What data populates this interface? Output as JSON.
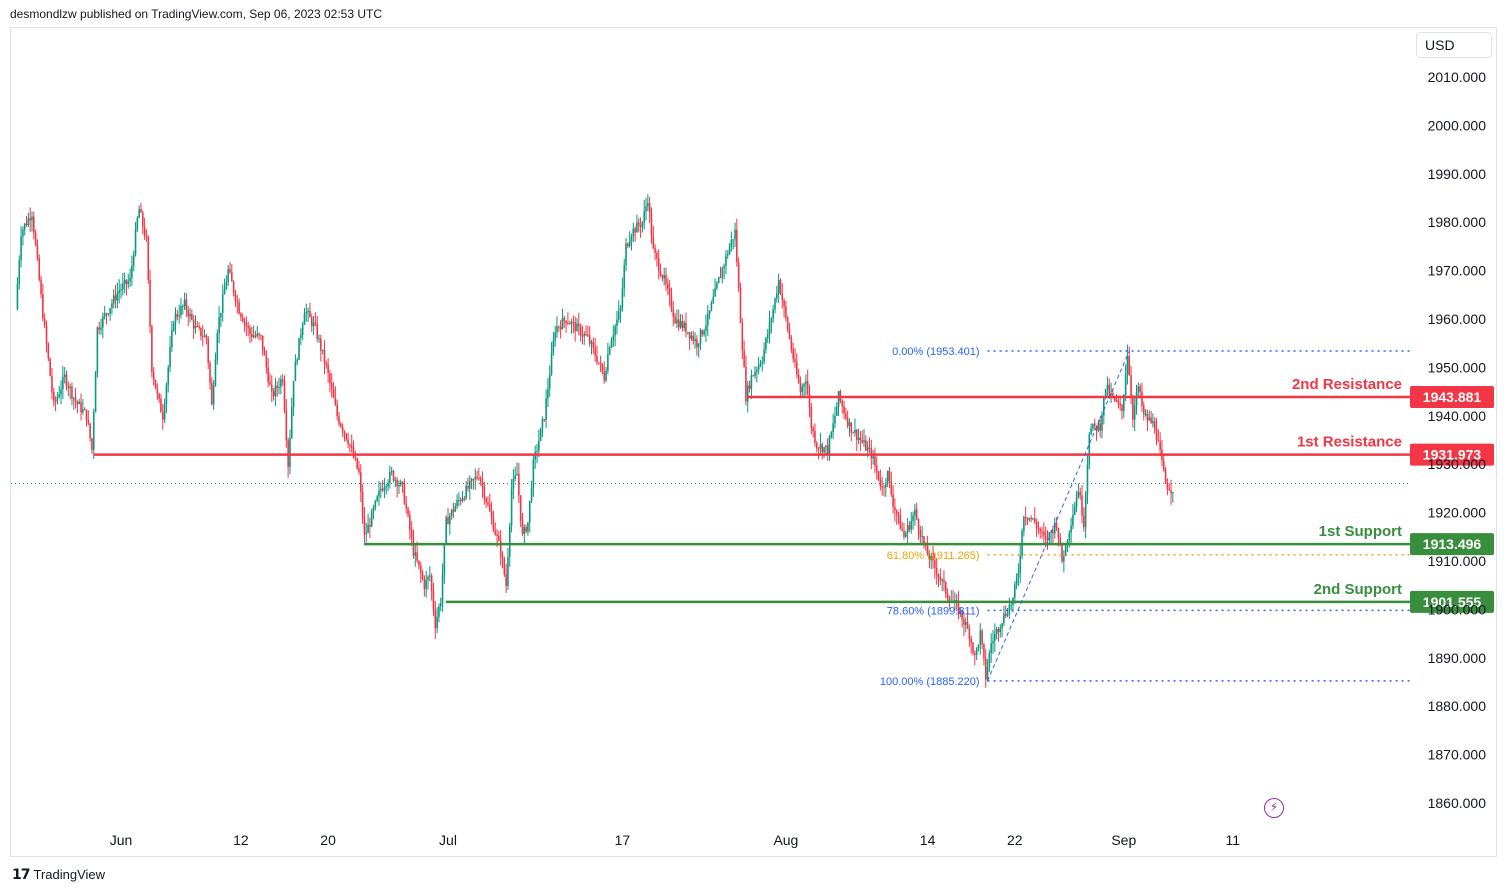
{
  "header": {
    "published": "desmondlzw published on TradingView.com, Sep 06, 2023 02:53 UTC"
  },
  "footer": {
    "brand": "TradingView",
    "logo_icon": "tradingview-logo-icon"
  },
  "currency": "USD",
  "colors": {
    "up": "#089981",
    "down": "#f23645",
    "resistance": "#f23645",
    "support": "#388e3c",
    "fib": "#2962ff",
    "fib_mid": "#f0a30a",
    "text": "#131722",
    "grid": "#e0e3eb"
  },
  "chart_data": {
    "type": "candlestick",
    "title": "",
    "ylim": [
      1852,
      2017
    ],
    "y_ticks": [
      "2010.000",
      "2000.000",
      "1990.000",
      "1980.000",
      "1970.000",
      "1960.000",
      "1950.000",
      "1940.000",
      "1930.000",
      "1920.000",
      "1910.000",
      "1900.000",
      "1890.000",
      "1880.000",
      "1870.000",
      "1860.000"
    ],
    "x_ticks": [
      {
        "label": "Jun",
        "day": 0
      },
      {
        "label": "12",
        "day": 11
      },
      {
        "label": "20",
        "day": 19
      },
      {
        "label": "Jul",
        "day": 30
      },
      {
        "label": "17",
        "day": 46
      },
      {
        "label": "Aug",
        "day": 61
      },
      {
        "label": "14",
        "day": 74
      },
      {
        "label": "22",
        "day": 82
      },
      {
        "label": "Sep",
        "day": 92
      },
      {
        "label": "11",
        "day": 102
      }
    ],
    "last_price": 1926.0,
    "levels": [
      {
        "name": "2nd Resistance",
        "value": 1943.881,
        "label": "1943.881",
        "kind": "resistance",
        "from_day": 57.5
      },
      {
        "name": "1st Resistance",
        "value": 1931.973,
        "label": "1931.973",
        "kind": "resistance",
        "from_day": -2.5
      },
      {
        "name": "1st Support",
        "value": 1913.496,
        "label": "1913.496",
        "kind": "support",
        "from_day": 22.3
      },
      {
        "name": "2nd Support",
        "value": 1901.555,
        "label": "1901.555",
        "kind": "support",
        "from_day": 29.8
      }
    ],
    "fibonacci": [
      {
        "label": "0.00% (1953.401)",
        "value": 1953.401
      },
      {
        "label": "61.80% (1911.265)",
        "value": 1911.265
      },
      {
        "label": "78.60% (1899.811)",
        "value": 1899.811
      },
      {
        "label": "100.00% (1885.220)",
        "value": 1885.22
      }
    ],
    "fib_anchor": {
      "start_day": 79.5,
      "start_value": 1885.22,
      "end_day": 92.5,
      "end_value": 1953.401
    },
    "path": [
      {
        "day": -9.5,
        "value": 1962
      },
      {
        "day": -9.0,
        "value": 1978
      },
      {
        "day": -8.0,
        "value": 1982
      },
      {
        "day": -7.0,
        "value": 1961
      },
      {
        "day": -6.0,
        "value": 1942
      },
      {
        "day": -5.0,
        "value": 1948
      },
      {
        "day": -4.0,
        "value": 1943
      },
      {
        "day": -3.0,
        "value": 1940
      },
      {
        "day": -2.5,
        "value": 1933
      },
      {
        "day": -2.0,
        "value": 1958
      },
      {
        "day": -1.0,
        "value": 1962
      },
      {
        "day": 0.0,
        "value": 1966
      },
      {
        "day": 1.0,
        "value": 1968
      },
      {
        "day": 1.8,
        "value": 1983
      },
      {
        "day": 2.5,
        "value": 1976
      },
      {
        "day": 3.0,
        "value": 1950
      },
      {
        "day": 3.5,
        "value": 1944
      },
      {
        "day": 4.0,
        "value": 1940
      },
      {
        "day": 5.0,
        "value": 1960
      },
      {
        "day": 6.0,
        "value": 1963
      },
      {
        "day": 7.0,
        "value": 1958
      },
      {
        "day": 8.0,
        "value": 1956
      },
      {
        "day": 8.5,
        "value": 1942
      },
      {
        "day": 9.0,
        "value": 1958
      },
      {
        "day": 10.0,
        "value": 1970
      },
      {
        "day": 11.0,
        "value": 1962
      },
      {
        "day": 12.0,
        "value": 1957
      },
      {
        "day": 13.0,
        "value": 1956
      },
      {
        "day": 14.0,
        "value": 1944
      },
      {
        "day": 15.0,
        "value": 1948
      },
      {
        "day": 15.5,
        "value": 1930
      },
      {
        "day": 16.0,
        "value": 1948
      },
      {
        "day": 17.0,
        "value": 1962
      },
      {
        "day": 18.0,
        "value": 1958
      },
      {
        "day": 19.0,
        "value": 1950
      },
      {
        "day": 20.0,
        "value": 1940
      },
      {
        "day": 21.0,
        "value": 1935
      },
      {
        "day": 22.0,
        "value": 1928
      },
      {
        "day": 22.5,
        "value": 1915
      },
      {
        "day": 23.0,
        "value": 1918
      },
      {
        "day": 24.0,
        "value": 1925
      },
      {
        "day": 25.0,
        "value": 1928
      },
      {
        "day": 26.0,
        "value": 1925
      },
      {
        "day": 27.0,
        "value": 1912
      },
      {
        "day": 28.0,
        "value": 1905
      },
      {
        "day": 28.5,
        "value": 1907
      },
      {
        "day": 29.0,
        "value": 1897
      },
      {
        "day": 29.5,
        "value": 1902
      },
      {
        "day": 30.0,
        "value": 1918
      },
      {
        "day": 31.0,
        "value": 1922
      },
      {
        "day": 32.0,
        "value": 1925
      },
      {
        "day": 33.0,
        "value": 1928
      },
      {
        "day": 34.0,
        "value": 1920
      },
      {
        "day": 35.0,
        "value": 1912
      },
      {
        "day": 35.5,
        "value": 1905
      },
      {
        "day": 36.0,
        "value": 1925
      },
      {
        "day": 36.5,
        "value": 1928
      },
      {
        "day": 37.0,
        "value": 1915
      },
      {
        "day": 37.5,
        "value": 1918
      },
      {
        "day": 38.0,
        "value": 1930
      },
      {
        "day": 39.0,
        "value": 1940
      },
      {
        "day": 40.0,
        "value": 1958
      },
      {
        "day": 41.0,
        "value": 1960
      },
      {
        "day": 42.0,
        "value": 1958
      },
      {
        "day": 43.0,
        "value": 1956
      },
      {
        "day": 44.0,
        "value": 1951
      },
      {
        "day": 44.5,
        "value": 1948
      },
      {
        "day": 45.0,
        "value": 1955
      },
      {
        "day": 46.0,
        "value": 1962
      },
      {
        "day": 46.5,
        "value": 1975
      },
      {
        "day": 47.0,
        "value": 1978
      },
      {
        "day": 48.0,
        "value": 1980
      },
      {
        "day": 48.5,
        "value": 1985
      },
      {
        "day": 49.0,
        "value": 1974
      },
      {
        "day": 50.0,
        "value": 1968
      },
      {
        "day": 51.0,
        "value": 1960
      },
      {
        "day": 52.0,
        "value": 1958
      },
      {
        "day": 53.0,
        "value": 1955
      },
      {
        "day": 54.0,
        "value": 1960
      },
      {
        "day": 55.0,
        "value": 1968
      },
      {
        "day": 56.0,
        "value": 1975
      },
      {
        "day": 56.5,
        "value": 1978
      },
      {
        "day": 57.0,
        "value": 1960
      },
      {
        "day": 57.5,
        "value": 1944
      },
      {
        "day": 58.0,
        "value": 1948
      },
      {
        "day": 59.0,
        "value": 1952
      },
      {
        "day": 60.0,
        "value": 1962
      },
      {
        "day": 60.5,
        "value": 1968
      },
      {
        "day": 61.0,
        "value": 1962
      },
      {
        "day": 62.0,
        "value": 1950
      },
      {
        "day": 62.5,
        "value": 1945
      },
      {
        "day": 63.0,
        "value": 1948
      },
      {
        "day": 63.5,
        "value": 1938
      },
      {
        "day": 64.0,
        "value": 1934
      },
      {
        "day": 65.0,
        "value": 1933
      },
      {
        "day": 65.5,
        "value": 1938
      },
      {
        "day": 66.0,
        "value": 1944
      },
      {
        "day": 67.0,
        "value": 1938
      },
      {
        "day": 68.0,
        "value": 1935
      },
      {
        "day": 69.0,
        "value": 1932
      },
      {
        "day": 70.0,
        "value": 1925
      },
      {
        "day": 70.5,
        "value": 1928
      },
      {
        "day": 71.0,
        "value": 1922
      },
      {
        "day": 72.0,
        "value": 1915
      },
      {
        "day": 73.0,
        "value": 1920
      },
      {
        "day": 74.0,
        "value": 1912
      },
      {
        "day": 75.0,
        "value": 1908
      },
      {
        "day": 76.0,
        "value": 1903
      },
      {
        "day": 77.0,
        "value": 1900
      },
      {
        "day": 78.0,
        "value": 1895
      },
      {
        "day": 78.5,
        "value": 1890
      },
      {
        "day": 79.0,
        "value": 1895
      },
      {
        "day": 79.5,
        "value": 1886
      },
      {
        "day": 80.0,
        "value": 1893
      },
      {
        "day": 81.0,
        "value": 1898
      },
      {
        "day": 82.0,
        "value": 1902
      },
      {
        "day": 82.5,
        "value": 1908
      },
      {
        "day": 83.0,
        "value": 1920
      },
      {
        "day": 84.0,
        "value": 1918
      },
      {
        "day": 85.0,
        "value": 1914
      },
      {
        "day": 86.0,
        "value": 1918
      },
      {
        "day": 86.5,
        "value": 1910
      },
      {
        "day": 87.0,
        "value": 1915
      },
      {
        "day": 88.0,
        "value": 1925
      },
      {
        "day": 88.5,
        "value": 1918
      },
      {
        "day": 89.0,
        "value": 1937
      },
      {
        "day": 90.0,
        "value": 1938
      },
      {
        "day": 90.5,
        "value": 1946
      },
      {
        "day": 91.0,
        "value": 1944
      },
      {
        "day": 92.0,
        "value": 1941
      },
      {
        "day": 92.5,
        "value": 1953
      },
      {
        "day": 93.0,
        "value": 1940
      },
      {
        "day": 93.5,
        "value": 1946
      },
      {
        "day": 94.0,
        "value": 1940
      },
      {
        "day": 95.0,
        "value": 1938
      },
      {
        "day": 95.5,
        "value": 1932
      },
      {
        "day": 96.0,
        "value": 1926
      },
      {
        "day": 96.5,
        "value": 1925
      }
    ]
  }
}
